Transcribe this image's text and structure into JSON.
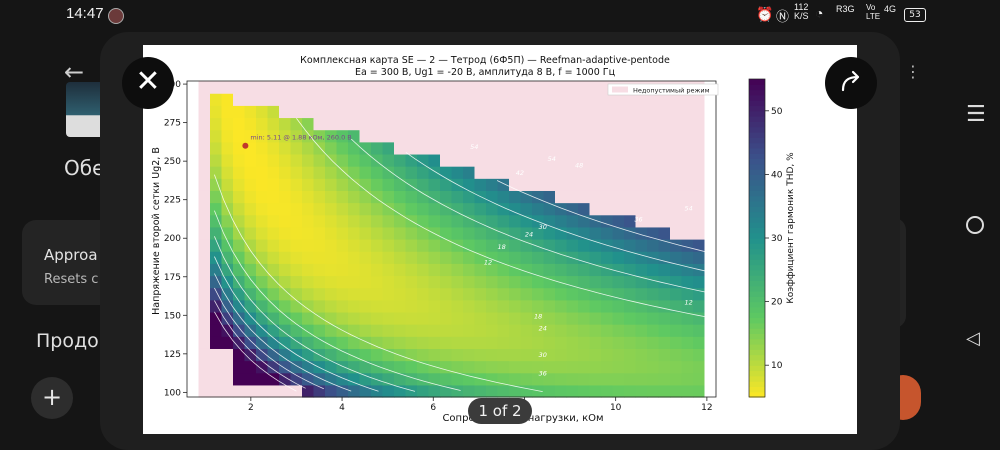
{
  "status_bar": {
    "time": "14:47",
    "net_speed_top": "112",
    "net_speed_unit": "K/S",
    "carrier1": "R3G",
    "carrier2_top": "Vo",
    "carrier2_bottom": "LTE",
    "carrier3": "4G",
    "battery": "53"
  },
  "background_app": {
    "title_fragment": "Обе",
    "card_title": "Approa",
    "card_subtitle": "Resets c",
    "section": "Продо",
    "add_label": "+"
  },
  "viewer": {
    "close_label": "✕",
    "page_indicator": "1 of 2"
  },
  "figure": {
    "title_line1": "Комплексная карта SE — 2 — Тетрод (6Ф5П) — Reefman-adaptive-pentode",
    "title_line2": "Ea = 300 В, Ug1 = -20 В, амплитуда 8 В, f = 1000 Гц",
    "xlabel": "Сопротивление нагрузки, кОм",
    "ylabel": "Напряжение второй сетки Ug2, В",
    "colorbar_label": "Коэффициент гармоник THD, %",
    "legend": "Недопустимый режим",
    "min_annotation": "min: 5.11 @ 1.88 кОм, 260.0 В",
    "x_ticks": [
      "2",
      "4",
      "6",
      "8",
      "10",
      "12"
    ],
    "y_ticks": [
      "100",
      "125",
      "150",
      "175",
      "200",
      "225",
      "250",
      "275",
      "300"
    ],
    "cb_ticks": [
      "10",
      "20",
      "30",
      "40",
      "50"
    ],
    "contour_labels": [
      "54",
      "54",
      "48",
      "42",
      "36",
      "30",
      "24",
      "18",
      "12",
      "12",
      "18",
      "24",
      "30",
      "36",
      "54"
    ]
  },
  "chart_data": {
    "type": "heatmap",
    "title": "Комплексная карта SE — 2 — Тетрод (6Ф5П) — Reefman-adaptive-pentode",
    "subtitle": "Ea = 300 В, Ug1 = -20 В, амплитуда 8 В, f = 1000 Гц",
    "xlabel": "Сопротивление нагрузки, кОм",
    "ylabel": "Напряжение второй сетки Ug2, В",
    "colorbar_label": "Коэффициент гармоник THD, %",
    "xlim": [
      0.6,
      12.2
    ],
    "ylim": [
      97,
      302
    ],
    "clim": [
      5,
      55
    ],
    "colormap": "viridis_r",
    "invalid_region_color": "#f7dde4",
    "legend": [
      "Недопустимый режим"
    ],
    "legend_position": "top-right",
    "minimum": {
      "thd": 5.11,
      "x": 1.88,
      "y": 260.0
    },
    "contour_levels": [
      12,
      18,
      24,
      30,
      36,
      42,
      48,
      54
    ]
  },
  "colors": {
    "invalid": "#f7dde4",
    "marker": "#c0392b",
    "accent_orange": "#c6552d"
  }
}
